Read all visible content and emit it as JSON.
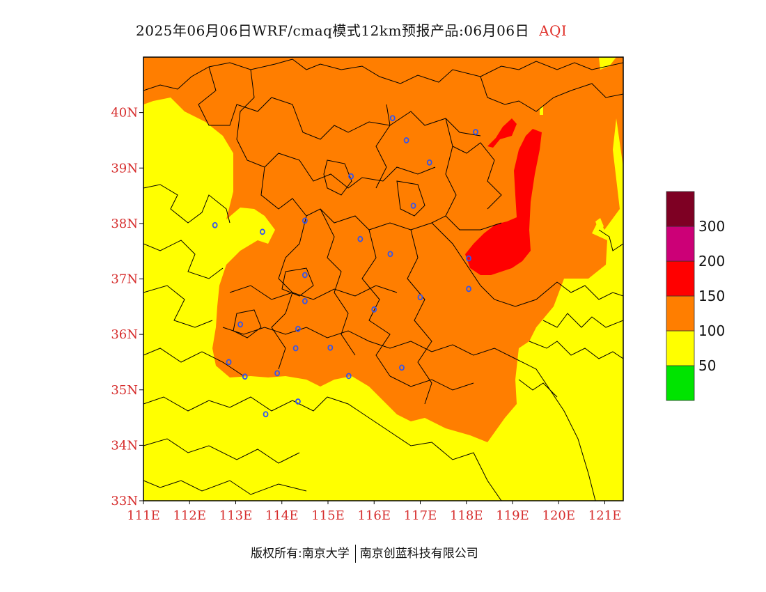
{
  "title": {
    "main": "2025年06月06日WRF/cmaq模式12km预报产品:06月06日",
    "product": "AQI"
  },
  "map": {
    "lat_ticks": [
      "40N",
      "39N",
      "38N",
      "37N",
      "36N",
      "35N",
      "34N",
      "33N"
    ],
    "lon_ticks": [
      "111E",
      "112E",
      "113E",
      "114E",
      "115E",
      "116E",
      "117E",
      "118E",
      "119E",
      "120E",
      "121E"
    ],
    "lat_range": [
      33,
      41
    ],
    "lon_range": [
      111,
      121.4
    ],
    "colors": {
      "moderate": "#ffff00",
      "unhealthy_sensitive": "#ff7e00",
      "unhealthy": "#ff0000",
      "boundary": "#000000",
      "city_marker": "#3355ee"
    },
    "cities": [
      {
        "lon": 116.4,
        "lat": 39.9
      },
      {
        "lon": 116.7,
        "lat": 39.5
      },
      {
        "lon": 118.2,
        "lat": 39.65
      },
      {
        "lon": 117.2,
        "lat": 39.1
      },
      {
        "lon": 115.5,
        "lat": 38.85
      },
      {
        "lon": 116.85,
        "lat": 38.32
      },
      {
        "lon": 112.55,
        "lat": 37.97
      },
      {
        "lon": 113.58,
        "lat": 37.85
      },
      {
        "lon": 114.5,
        "lat": 38.05
      },
      {
        "lon": 115.7,
        "lat": 37.72
      },
      {
        "lon": 116.35,
        "lat": 37.45
      },
      {
        "lon": 118.05,
        "lat": 37.37
      },
      {
        "lon": 114.5,
        "lat": 37.07
      },
      {
        "lon": 118.05,
        "lat": 36.82
      },
      {
        "lon": 117.0,
        "lat": 36.67
      },
      {
        "lon": 114.5,
        "lat": 36.6
      },
      {
        "lon": 116.0,
        "lat": 36.45
      },
      {
        "lon": 113.1,
        "lat": 36.18
      },
      {
        "lon": 114.35,
        "lat": 36.1
      },
      {
        "lon": 115.05,
        "lat": 35.76
      },
      {
        "lon": 114.3,
        "lat": 35.75
      },
      {
        "lon": 116.6,
        "lat": 35.4
      },
      {
        "lon": 112.85,
        "lat": 35.5
      },
      {
        "lon": 113.2,
        "lat": 35.24
      },
      {
        "lon": 113.9,
        "lat": 35.3
      },
      {
        "lon": 115.45,
        "lat": 35.25
      },
      {
        "lon": 114.35,
        "lat": 34.79
      },
      {
        "lon": 113.65,
        "lat": 34.56
      }
    ]
  },
  "legend": {
    "colors": [
      "#00e400",
      "#ffff00",
      "#ff7e00",
      "#ff0000",
      "#cc0077",
      "#7e0023"
    ],
    "labels": [
      "50",
      "100",
      "150",
      "200",
      "300"
    ]
  },
  "footer": {
    "owner_prefix": "版权所有:",
    "university": "南京大学",
    "company": "南京创蓝科技有限公司"
  }
}
